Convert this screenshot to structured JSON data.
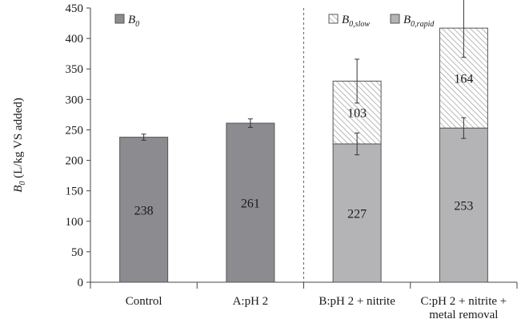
{
  "chart_data": {
    "type": "bar",
    "stacked": true,
    "categories": [
      "Control",
      "A:pH 2",
      "B:pH 2 + nitrite",
      "C:pH 2 + nitrite +\nmetal removal"
    ],
    "ylabel": "B0 (L/kg VS added)",
    "ylabel_parts": {
      "base": "B",
      "sub": "0",
      "rest": " (L/kg VS added)"
    },
    "ylim": [
      0,
      450
    ],
    "yticks": [
      0,
      50,
      100,
      150,
      200,
      250,
      300,
      350,
      400,
      450
    ],
    "grid": false,
    "separator_after_category": 1,
    "series": [
      {
        "name": "B0",
        "name_base": "B",
        "name_sub": "0",
        "color": "#8c8c90",
        "pattern": "solid",
        "values": [
          238,
          261,
          null,
          null
        ],
        "error": [
          5,
          7,
          null,
          null
        ],
        "labels": [
          "238",
          "261",
          "",
          ""
        ]
      },
      {
        "name": "B0,rapid",
        "name_base": "B",
        "name_sub": "0,rapid",
        "color": "#b4b4b6",
        "pattern": "solid",
        "values": [
          null,
          null,
          227,
          253
        ],
        "error": [
          null,
          null,
          18,
          17
        ],
        "labels": [
          "",
          "",
          "227",
          "253"
        ]
      },
      {
        "name": "B0,slow",
        "name_base": "B",
        "name_sub": "0,slow",
        "color": "#ffffff",
        "pattern": "hatch",
        "values": [
          null,
          null,
          103,
          164
        ],
        "error": [
          null,
          null,
          36,
          48
        ],
        "labels": [
          "",
          "",
          "103",
          "164"
        ]
      }
    ],
    "legend": [
      {
        "series_index": 0,
        "placement": "top-left"
      },
      {
        "series_index": 2,
        "placement": "top-right"
      },
      {
        "series_index": 1,
        "placement": "top-right"
      }
    ]
  }
}
